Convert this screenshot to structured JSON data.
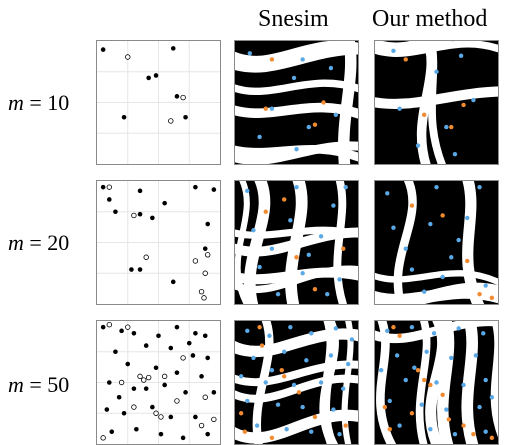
{
  "headers": {
    "snesim": "Snesim",
    "ours": "Our method"
  },
  "rows": [
    {
      "label_var": "m",
      "label_value": "= 10",
      "points": {
        "black": [
          [
            0.05,
            0.07
          ],
          [
            0.62,
            0.06
          ],
          [
            0.42,
            0.3
          ],
          [
            0.48,
            0.28
          ],
          [
            0.65,
            0.45
          ],
          [
            0.22,
            0.62
          ],
          [
            0.72,
            0.62
          ]
        ],
        "hollow": [
          [
            0.25,
            0.13
          ],
          [
            0.7,
            0.46
          ],
          [
            0.6,
            0.65
          ]
        ]
      },
      "snesim": {
        "blue": [
          [
            0.12,
            0.1
          ],
          [
            0.55,
            0.15
          ],
          [
            0.48,
            0.3
          ],
          [
            0.78,
            0.22
          ],
          [
            0.3,
            0.55
          ],
          [
            0.6,
            0.7
          ],
          [
            0.82,
            0.6
          ],
          [
            0.2,
            0.78
          ],
          [
            0.5,
            0.88
          ]
        ],
        "orange": [
          [
            0.3,
            0.15
          ],
          [
            0.72,
            0.5
          ],
          [
            0.65,
            0.68
          ],
          [
            0.25,
            0.55
          ]
        ]
      },
      "ours": {
        "blue": [
          [
            0.15,
            0.08
          ],
          [
            0.5,
            0.25
          ],
          [
            0.7,
            0.12
          ],
          [
            0.2,
            0.55
          ],
          [
            0.58,
            0.7
          ],
          [
            0.8,
            0.48
          ],
          [
            0.35,
            0.85
          ],
          [
            0.65,
            0.92
          ]
        ],
        "orange": [
          [
            0.25,
            0.15
          ],
          [
            0.72,
            0.52
          ],
          [
            0.62,
            0.7
          ],
          [
            0.4,
            0.6
          ]
        ]
      }
    },
    {
      "label_var": "m",
      "label_value": "= 20",
      "points": {
        "black": [
          [
            0.1,
            0.15
          ],
          [
            0.35,
            0.08
          ],
          [
            0.8,
            0.05
          ],
          [
            0.95,
            0.07
          ],
          [
            0.55,
            0.18
          ],
          [
            0.45,
            0.3
          ],
          [
            0.35,
            0.27
          ],
          [
            0.9,
            0.35
          ],
          [
            0.88,
            0.55
          ],
          [
            0.28,
            0.72
          ],
          [
            0.35,
            0.72
          ],
          [
            0.62,
            0.82
          ],
          [
            0.15,
            0.25
          ],
          [
            0.05,
            0.05
          ]
        ],
        "hollow": [
          [
            0.1,
            0.05
          ],
          [
            0.3,
            0.28
          ],
          [
            0.4,
            0.62
          ],
          [
            0.9,
            0.6
          ],
          [
            0.88,
            0.75
          ],
          [
            0.85,
            0.9
          ],
          [
            0.87,
            0.95
          ],
          [
            0.8,
            0.65
          ]
        ]
      },
      "snesim": {
        "blue": [
          [
            0.1,
            0.08
          ],
          [
            0.5,
            0.05
          ],
          [
            0.8,
            0.2
          ],
          [
            0.45,
            0.32
          ],
          [
            0.3,
            0.55
          ],
          [
            0.7,
            0.45
          ],
          [
            0.2,
            0.7
          ],
          [
            0.55,
            0.75
          ],
          [
            0.85,
            0.8
          ],
          [
            0.35,
            0.92
          ],
          [
            0.75,
            0.92
          ],
          [
            0.6,
            0.6
          ],
          [
            0.15,
            0.4
          ],
          [
            0.9,
            0.05
          ]
        ],
        "orange": [
          [
            0.25,
            0.25
          ],
          [
            0.5,
            0.62
          ],
          [
            0.88,
            0.55
          ],
          [
            0.4,
            0.15
          ],
          [
            0.65,
            0.88
          ]
        ]
      },
      "ours": {
        "blue": [
          [
            0.1,
            0.1
          ],
          [
            0.5,
            0.05
          ],
          [
            0.85,
            0.05
          ],
          [
            0.45,
            0.35
          ],
          [
            0.25,
            0.55
          ],
          [
            0.68,
            0.48
          ],
          [
            0.3,
            0.72
          ],
          [
            0.55,
            0.78
          ],
          [
            0.9,
            0.85
          ],
          [
            0.4,
            0.9
          ],
          [
            0.75,
            0.3
          ],
          [
            0.15,
            0.38
          ],
          [
            0.62,
            0.62
          ]
        ],
        "orange": [
          [
            0.55,
            0.28
          ],
          [
            0.75,
            0.65
          ],
          [
            0.85,
            0.92
          ],
          [
            0.95,
            0.95
          ],
          [
            0.3,
            0.2
          ]
        ]
      }
    },
    {
      "label_var": "m",
      "label_value": "= 50",
      "points": {
        "black": [
          [
            0.05,
            0.05
          ],
          [
            0.2,
            0.08
          ],
          [
            0.3,
            0.1
          ],
          [
            0.5,
            0.12
          ],
          [
            0.65,
            0.05
          ],
          [
            0.8,
            0.1
          ],
          [
            0.88,
            0.12
          ],
          [
            0.15,
            0.25
          ],
          [
            0.4,
            0.2
          ],
          [
            0.6,
            0.22
          ],
          [
            0.78,
            0.28
          ],
          [
            0.9,
            0.3
          ],
          [
            0.25,
            0.35
          ],
          [
            0.48,
            0.38
          ],
          [
            0.65,
            0.42
          ],
          [
            0.85,
            0.45
          ],
          [
            0.1,
            0.5
          ],
          [
            0.3,
            0.55
          ],
          [
            0.55,
            0.52
          ],
          [
            0.72,
            0.58
          ],
          [
            0.95,
            0.58
          ],
          [
            0.08,
            0.72
          ],
          [
            0.22,
            0.75
          ],
          [
            0.45,
            0.7
          ],
          [
            0.6,
            0.78
          ],
          [
            0.8,
            0.78
          ],
          [
            0.12,
            0.9
          ],
          [
            0.32,
            0.88
          ],
          [
            0.52,
            0.92
          ],
          [
            0.7,
            0.95
          ],
          [
            0.9,
            0.92
          ],
          [
            0.4,
            0.55
          ],
          [
            0.18,
            0.62
          ],
          [
            0.75,
            0.18
          ]
        ],
        "hollow": [
          [
            0.1,
            0.03
          ],
          [
            0.25,
            0.05
          ],
          [
            0.35,
            0.45
          ],
          [
            0.38,
            0.48
          ],
          [
            0.42,
            0.46
          ],
          [
            0.2,
            0.5
          ],
          [
            0.55,
            0.45
          ],
          [
            0.48,
            0.75
          ],
          [
            0.52,
            0.78
          ],
          [
            0.85,
            0.85
          ],
          [
            0.95,
            0.8
          ],
          [
            0.05,
            0.95
          ],
          [
            0.65,
            0.65
          ],
          [
            0.3,
            0.7
          ],
          [
            0.88,
            0.62
          ],
          [
            0.7,
            0.3
          ]
        ]
      },
      "snesim": {
        "blue": [
          [
            0.1,
            0.08
          ],
          [
            0.28,
            0.12
          ],
          [
            0.45,
            0.05
          ],
          [
            0.62,
            0.1
          ],
          [
            0.82,
            0.06
          ],
          [
            0.15,
            0.3
          ],
          [
            0.4,
            0.25
          ],
          [
            0.58,
            0.32
          ],
          [
            0.78,
            0.28
          ],
          [
            0.92,
            0.35
          ],
          [
            0.25,
            0.5
          ],
          [
            0.48,
            0.52
          ],
          [
            0.7,
            0.5
          ],
          [
            0.88,
            0.55
          ],
          [
            0.1,
            0.65
          ],
          [
            0.35,
            0.68
          ],
          [
            0.55,
            0.7
          ],
          [
            0.8,
            0.72
          ],
          [
            0.18,
            0.85
          ],
          [
            0.42,
            0.88
          ],
          [
            0.62,
            0.9
          ],
          [
            0.85,
            0.92
          ],
          [
            0.05,
            0.45
          ],
          [
            0.95,
            0.15
          ],
          [
            0.3,
            0.4
          ]
        ],
        "orange": [
          [
            0.2,
            0.05
          ],
          [
            0.22,
            0.2
          ],
          [
            0.38,
            0.4
          ],
          [
            0.4,
            0.45
          ],
          [
            0.52,
            0.58
          ],
          [
            0.05,
            0.75
          ],
          [
            0.08,
            0.9
          ],
          [
            0.65,
            0.78
          ],
          [
            0.3,
            0.95
          ],
          [
            0.9,
            0.85
          ]
        ]
      },
      "ours": {
        "blue": [
          [
            0.1,
            0.08
          ],
          [
            0.3,
            0.05
          ],
          [
            0.48,
            0.1
          ],
          [
            0.68,
            0.06
          ],
          [
            0.88,
            0.1
          ],
          [
            0.18,
            0.28
          ],
          [
            0.42,
            0.25
          ],
          [
            0.62,
            0.3
          ],
          [
            0.82,
            0.28
          ],
          [
            0.25,
            0.48
          ],
          [
            0.5,
            0.5
          ],
          [
            0.72,
            0.52
          ],
          [
            0.9,
            0.48
          ],
          [
            0.12,
            0.65
          ],
          [
            0.38,
            0.68
          ],
          [
            0.58,
            0.72
          ],
          [
            0.85,
            0.7
          ],
          [
            0.2,
            0.85
          ],
          [
            0.45,
            0.88
          ],
          [
            0.65,
            0.92
          ],
          [
            0.9,
            0.9
          ],
          [
            0.05,
            0.4
          ],
          [
            0.95,
            0.62
          ],
          [
            0.32,
            0.38
          ]
        ],
        "orange": [
          [
            0.15,
            0.05
          ],
          [
            0.2,
            0.12
          ],
          [
            0.35,
            0.4
          ],
          [
            0.4,
            0.48
          ],
          [
            0.45,
            0.52
          ],
          [
            0.55,
            0.6
          ],
          [
            0.08,
            0.7
          ],
          [
            0.12,
            0.88
          ],
          [
            0.72,
            0.85
          ],
          [
            0.8,
            0.92
          ],
          [
            0.3,
            0.75
          ],
          [
            0.6,
            0.8
          ],
          [
            0.95,
            0.95
          ]
        ]
      }
    }
  ]
}
